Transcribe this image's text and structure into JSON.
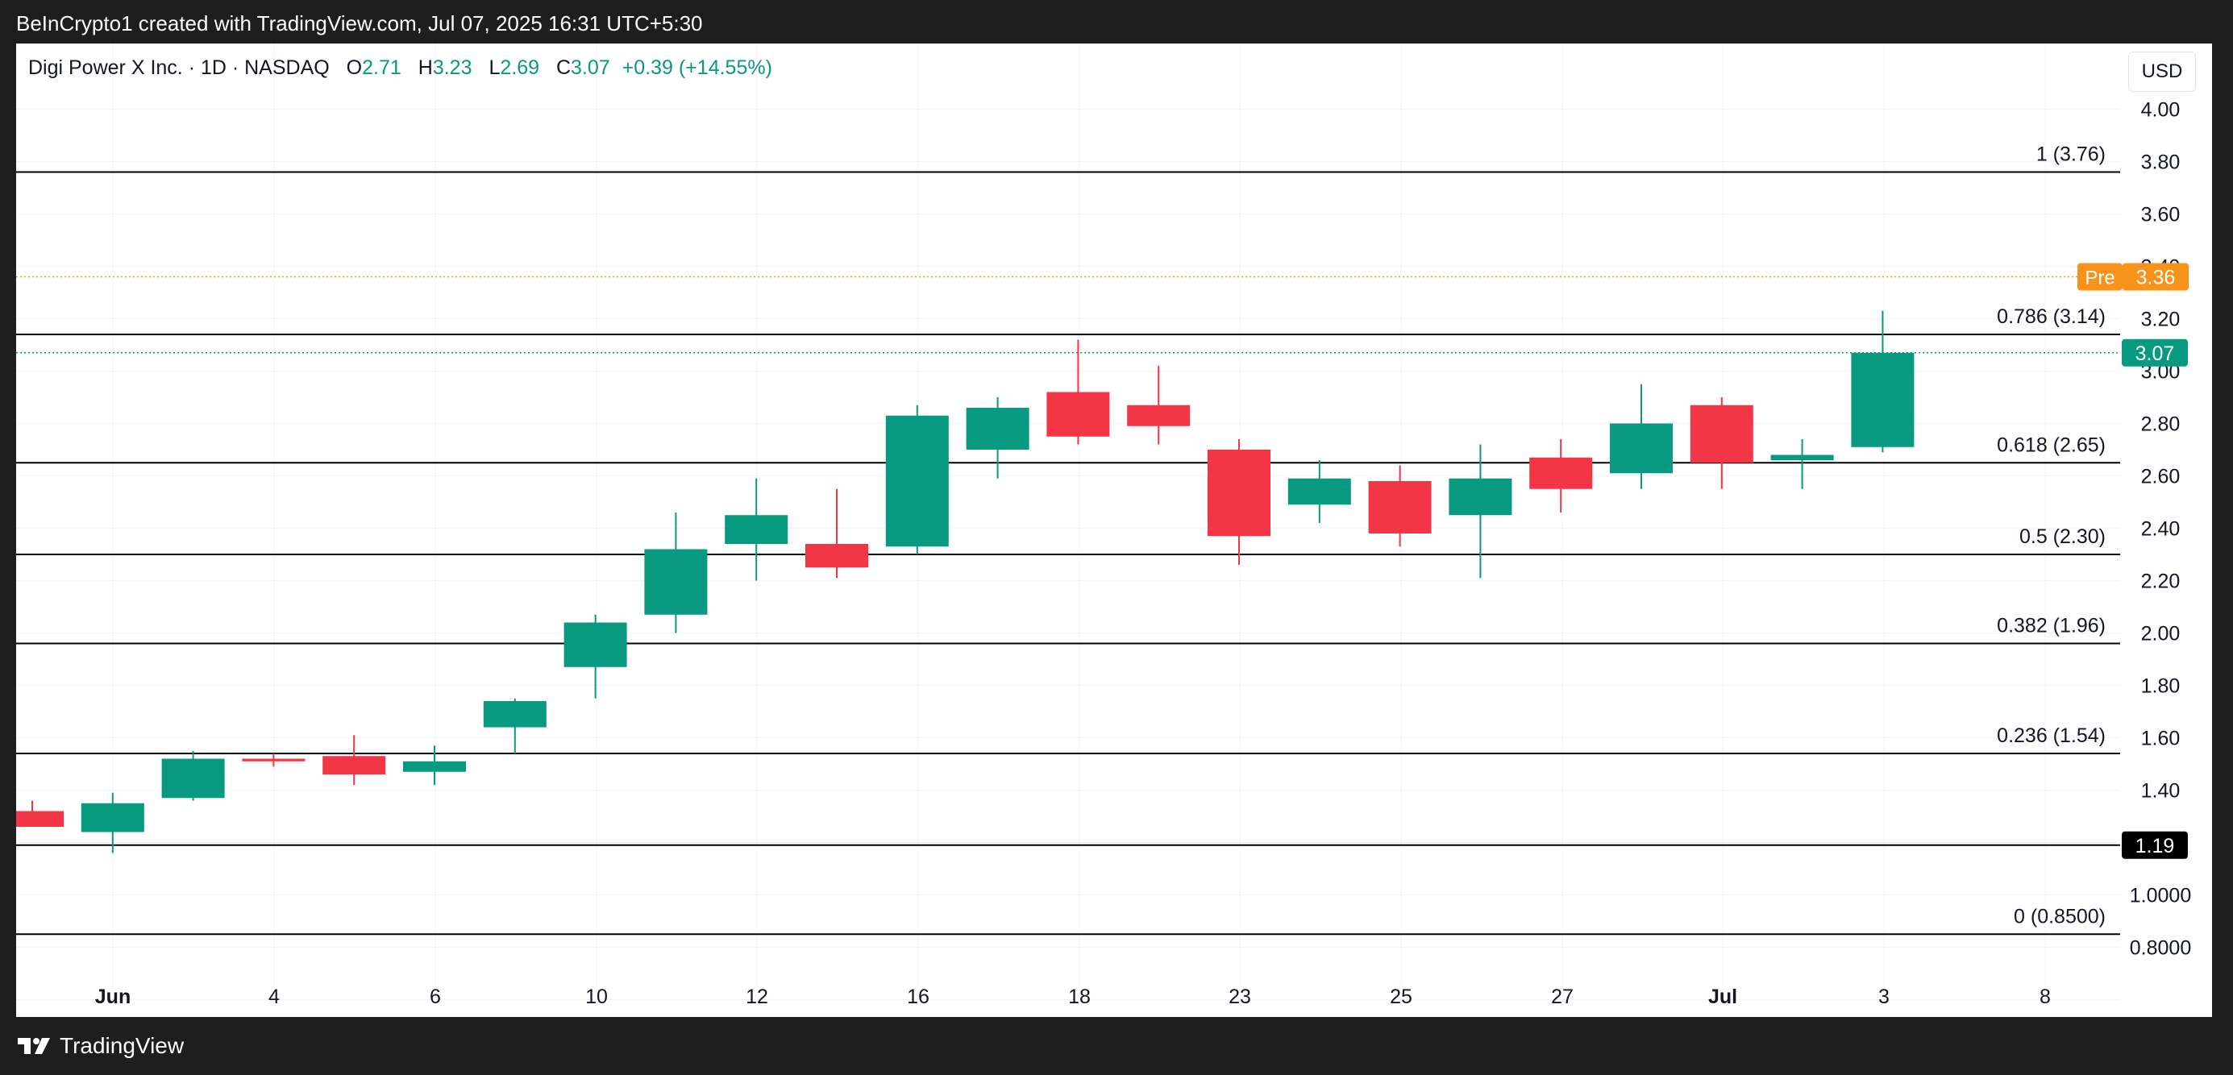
{
  "header": {
    "credit": "BeInCrypto1 created with TradingView.com, Jul 07, 2025 16:31 UTC+5:30"
  },
  "legend": {
    "symbol": "Digi Power X Inc. · 1D · NASDAQ",
    "open_label": "O",
    "open": "2.71",
    "high_label": "H",
    "high": "3.23",
    "low_label": "L",
    "low": "2.69",
    "close_label": "C",
    "close": "3.07",
    "change": "+0.39 (+14.55%)"
  },
  "currency_button": "USD",
  "footer": {
    "brand": "TradingView"
  },
  "colors": {
    "up": "#089981",
    "down": "#f23645",
    "premarket": "#f7931a",
    "fib_line": "#000000"
  },
  "chart_data": {
    "type": "candlestick",
    "price_axis_labels": [
      "4.00",
      "3.80",
      "3.60",
      "3.40",
      "3.20",
      "3.00",
      "2.80",
      "2.60",
      "2.40",
      "2.20",
      "2.00",
      "1.80",
      "1.60",
      "1.40",
      "1.0000",
      "0.8000"
    ],
    "x_tick_labels": [
      "Jun",
      "4",
      "6",
      "10",
      "12",
      "16",
      "18",
      "23",
      "25",
      "27",
      "Jul",
      "3",
      "8"
    ],
    "candles": [
      {
        "open": 1.32,
        "high": 1.36,
        "low": 1.26,
        "close": 1.26
      },
      {
        "open": 1.24,
        "high": 1.39,
        "low": 1.16,
        "close": 1.35
      },
      {
        "open": 1.37,
        "high": 1.55,
        "low": 1.36,
        "close": 1.52
      },
      {
        "open": 1.52,
        "high": 1.54,
        "low": 1.49,
        "close": 1.51
      },
      {
        "open": 1.53,
        "high": 1.61,
        "low": 1.42,
        "close": 1.46
      },
      {
        "open": 1.47,
        "high": 1.57,
        "low": 1.42,
        "close": 1.51
      },
      {
        "open": 1.64,
        "high": 1.75,
        "low": 1.54,
        "close": 1.74
      },
      {
        "open": 1.87,
        "high": 2.07,
        "low": 1.75,
        "close": 2.04
      },
      {
        "open": 2.07,
        "high": 2.46,
        "low": 2.0,
        "close": 2.32
      },
      {
        "open": 2.34,
        "high": 2.59,
        "low": 2.2,
        "close": 2.45
      },
      {
        "open": 2.34,
        "high": 2.55,
        "low": 2.21,
        "close": 2.25
      },
      {
        "open": 2.33,
        "high": 2.87,
        "low": 2.3,
        "close": 2.83
      },
      {
        "open": 2.7,
        "high": 2.9,
        "low": 2.59,
        "close": 2.86
      },
      {
        "open": 2.92,
        "high": 3.12,
        "low": 2.72,
        "close": 2.75
      },
      {
        "open": 2.87,
        "high": 3.02,
        "low": 2.72,
        "close": 2.79
      },
      {
        "open": 2.7,
        "high": 2.74,
        "low": 2.26,
        "close": 2.37
      },
      {
        "open": 2.49,
        "high": 2.66,
        "low": 2.42,
        "close": 2.59
      },
      {
        "open": 2.58,
        "high": 2.64,
        "low": 2.33,
        "close": 2.38
      },
      {
        "open": 2.45,
        "high": 2.72,
        "low": 2.21,
        "close": 2.59
      },
      {
        "open": 2.67,
        "high": 2.74,
        "low": 2.46,
        "close": 2.55
      },
      {
        "open": 2.61,
        "high": 2.95,
        "low": 2.55,
        "close": 2.8
      },
      {
        "open": 2.87,
        "high": 2.9,
        "low": 2.55,
        "close": 2.65
      },
      {
        "open": 2.66,
        "high": 2.74,
        "low": 2.55,
        "close": 2.68
      },
      {
        "open": 2.71,
        "high": 3.23,
        "low": 2.69,
        "close": 3.07
      }
    ],
    "fib_levels": [
      {
        "label": "1 (3.76)",
        "value": 3.76
      },
      {
        "label": "0.786 (3.14)",
        "value": 3.14
      },
      {
        "label": "0.618 (2.65)",
        "value": 2.65
      },
      {
        "label": "0.5 (2.30)",
        "value": 2.3
      },
      {
        "label": "0.382 (1.96)",
        "value": 1.96
      },
      {
        "label": "0.236 (1.54)",
        "value": 1.54
      },
      {
        "label": "0 (0.8500)",
        "value": 0.85
      }
    ],
    "support_line": {
      "value": 1.19,
      "label": "1.19"
    },
    "premarket": {
      "label": "Pre",
      "value": 3.36,
      "price_label": "3.36"
    },
    "last_price": {
      "value": 3.07,
      "label": "3.07"
    }
  }
}
